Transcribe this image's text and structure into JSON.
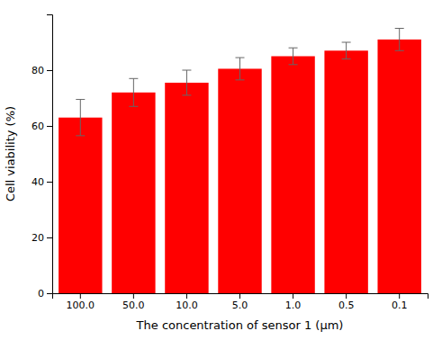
{
  "chart_data": {
    "type": "bar",
    "categories": [
      "100.0",
      "50.0",
      "10.0",
      "5.0",
      "1.0",
      "0.5",
      "0.1"
    ],
    "values": [
      63,
      72,
      75.5,
      80.5,
      85,
      87,
      91
    ],
    "errors": [
      6.5,
      5,
      4.5,
      4,
      3,
      3,
      4
    ],
    "color": "#FF0000",
    "xlabel": "The concentration of sensor 1   (μm)",
    "ylabel": "Cell viability (%)",
    "ylim": [
      0,
      100
    ],
    "yticks": [
      0,
      20,
      40,
      60,
      80
    ],
    "grid": false
  }
}
